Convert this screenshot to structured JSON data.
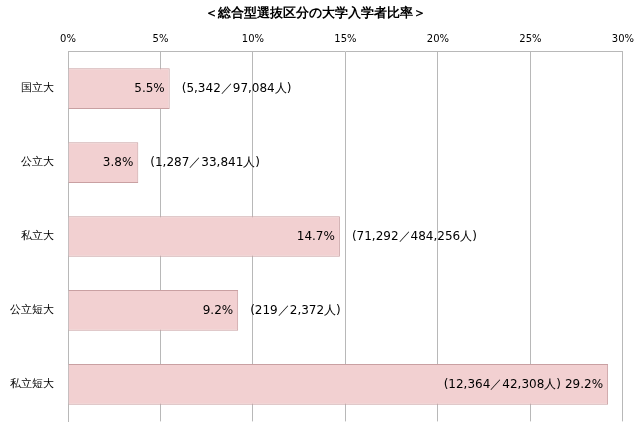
{
  "chart_data": {
    "type": "bar",
    "orientation": "horizontal",
    "title": "＜総合型選抜区分の大学入学者比率＞",
    "categories": [
      "国立大",
      "公立大",
      "私立大",
      "公立短大",
      "私立短大"
    ],
    "values": [
      5.5,
      3.8,
      14.7,
      9.2,
      29.2
    ],
    "value_labels": [
      "5.5%",
      "3.8%",
      "14.7%",
      "9.2%",
      "29.2%"
    ],
    "annotations": [
      "(5,342／97,084人)",
      "(1,287／33,841人)",
      "(71,292／484,256人)",
      "(219／2,372人)",
      "(12,364／42,308人)"
    ],
    "data_labels": true,
    "color": "#f2d0d1",
    "xlim": [
      0,
      30
    ],
    "xticks": [
      {
        "value": 0,
        "label": "0%"
      },
      {
        "value": 5,
        "label": "5%"
      },
      {
        "value": 10,
        "label": "10%"
      },
      {
        "value": 15,
        "label": "15%"
      },
      {
        "value": 20,
        "label": "20%"
      },
      {
        "value": 25,
        "label": "25%"
      },
      {
        "value": 30,
        "label": "30%"
      }
    ],
    "grid": true
  }
}
